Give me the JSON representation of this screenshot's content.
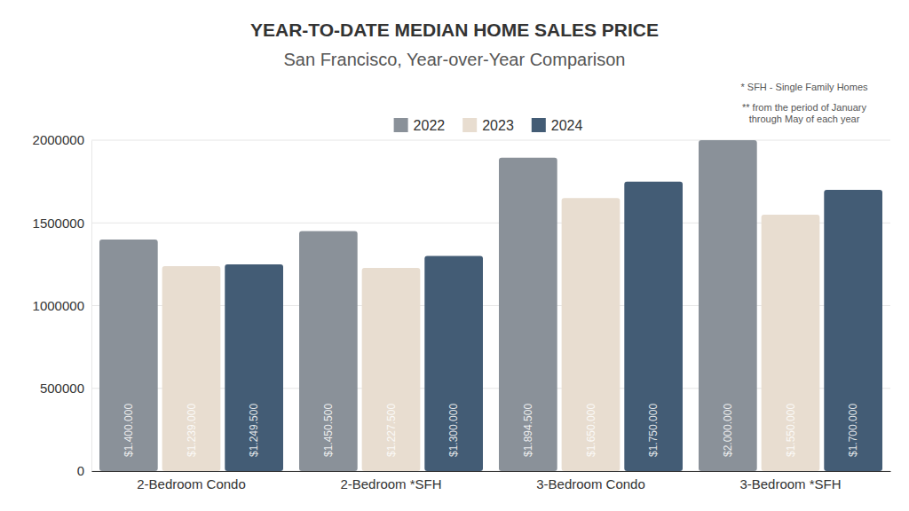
{
  "chart_data": {
    "type": "bar",
    "title": "YEAR-TO-DATE MEDIAN HOME SALES PRICE",
    "subtitle": "San Francisco, Year-over-Year Comparison",
    "annotations": [
      "* SFH - Single Family Homes",
      "** from the period of January through May of each year"
    ],
    "categories": [
      "2-Bedroom Condo",
      "2-Bedroom *SFH",
      "3-Bedroom Condo",
      "3-Bedroom *SFH"
    ],
    "series": [
      {
        "name": "2022",
        "color": "#8a9199",
        "values": [
          1400000,
          1450500,
          1894500,
          2000000
        ],
        "value_labels": [
          "$1.400.000",
          "$1.450.500",
          "$1.894.500",
          "$2.000.000"
        ]
      },
      {
        "name": "2023",
        "color": "#e8ddd0",
        "values": [
          1239000,
          1227500,
          1650000,
          1550000
        ],
        "value_labels": [
          "$1.239.000",
          "$1.227.500",
          "$1.650.000",
          "$1.550.000"
        ]
      },
      {
        "name": "2024",
        "color": "#435c75",
        "values": [
          1249500,
          1300000,
          1750000,
          1700000
        ],
        "value_labels": [
          "$1.249.500",
          "$1.300.000",
          "$1.750.000",
          "$1.700.000"
        ]
      }
    ],
    "ylim": [
      0,
      2000000
    ],
    "yticks": [
      0,
      500000,
      1000000,
      1500000,
      2000000
    ],
    "grid": true,
    "legend": "top",
    "data_labels": true
  }
}
